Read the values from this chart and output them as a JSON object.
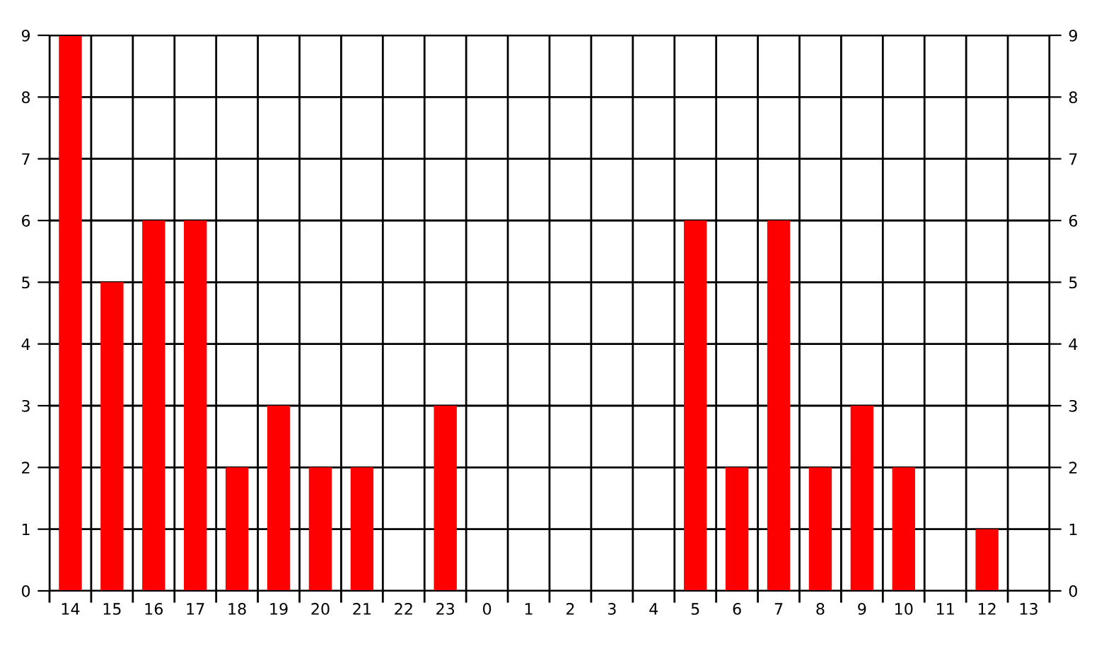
{
  "chart_data": {
    "type": "bar",
    "categories": [
      "14",
      "15",
      "16",
      "17",
      "18",
      "19",
      "20",
      "21",
      "22",
      "23",
      "0",
      "1",
      "2",
      "3",
      "4",
      "5",
      "6",
      "7",
      "8",
      "9",
      "10",
      "11",
      "12",
      "13"
    ],
    "series": [
      {
        "color": "#ff0000",
        "values": [
          9,
          5,
          6,
          6,
          2,
          3,
          2,
          2,
          0,
          3,
          0,
          0,
          0,
          0,
          0,
          6,
          2,
          6,
          2,
          3,
          2,
          0,
          1,
          0
        ]
      }
    ],
    "ylim": [
      0,
      9
    ],
    "yticks": [
      0,
      1,
      2,
      3,
      4,
      5,
      6,
      7,
      8,
      9
    ],
    "y2lim": [
      0,
      9
    ],
    "y2ticks": [
      0,
      1,
      2,
      3,
      4,
      5,
      6,
      7,
      8,
      9
    ],
    "grid": true
  }
}
